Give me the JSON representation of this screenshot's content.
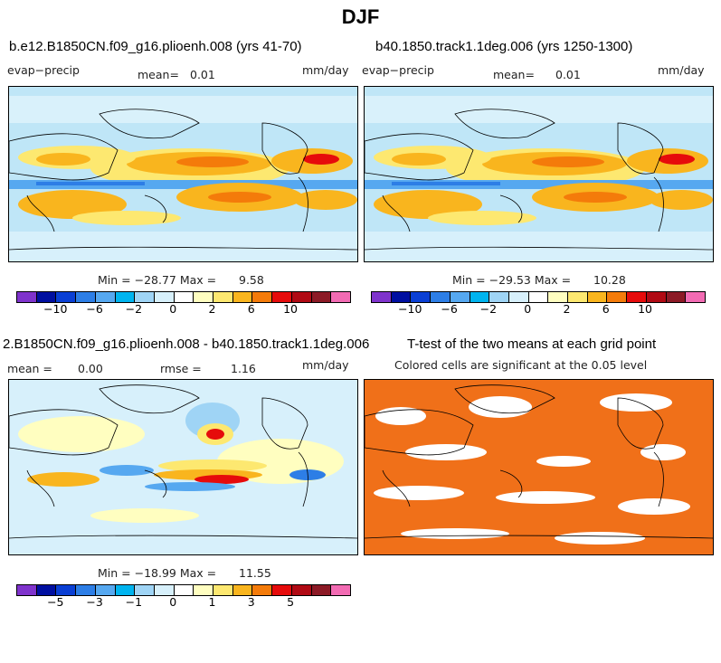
{
  "figure_title": "DJF",
  "panels": [
    {
      "title": "b.e12.B1850CN.f09_g16.plioenh.008 (yrs 41-70)",
      "variable": "evap−precip",
      "stat_label": "mean=",
      "stat_value": "0.01",
      "units": "mm/day",
      "min_label": "Min = −28.77 Max =",
      "max_value": "9.58"
    },
    {
      "title": "b40.1850.track1.1deg.006 (yrs 1250-1300)",
      "variable": "evap−precip",
      "stat_label": "mean=",
      "stat_value": "0.01",
      "units": "mm/day",
      "min_label": "Min = −29.53 Max =",
      "max_value": "10.28"
    },
    {
      "title": "2.B1850CN.f09_g16.plioenh.008 - b40.1850.track1.1deg.006",
      "mean_label": "mean =",
      "mean_value": "0.00",
      "rmse_label": "rmse =",
      "rmse_value": "1.16",
      "units": "mm/day",
      "min_label": "Min = −18.99 Max =",
      "max_value": "11.55"
    },
    {
      "title": "T-test of the two means at each grid point",
      "subtitle": "Colored cells are significant at the 0.05 level"
    }
  ],
  "colorbar_colors": [
    "#7f33cc",
    "#000fa0",
    "#0a3fd4",
    "#2d7ee6",
    "#56a8f0",
    "#00b4ef",
    "#9fd4f5",
    "#d7f0fb",
    "#ffffff",
    "#fffec0",
    "#fde870",
    "#f9b51e",
    "#f47b0a",
    "#e60b0b",
    "#b00a14",
    "#8c1a26",
    "#f26bb3"
  ],
  "colorbar_top_ticks": [
    "−10",
    "−6",
    "−2",
    "0",
    "2",
    "6",
    "10"
  ],
  "colorbar_bottom_ticks": [
    "−5",
    "−3",
    "−1",
    "0",
    "1",
    "3",
    "5"
  ],
  "significance_color": "#f07019"
}
